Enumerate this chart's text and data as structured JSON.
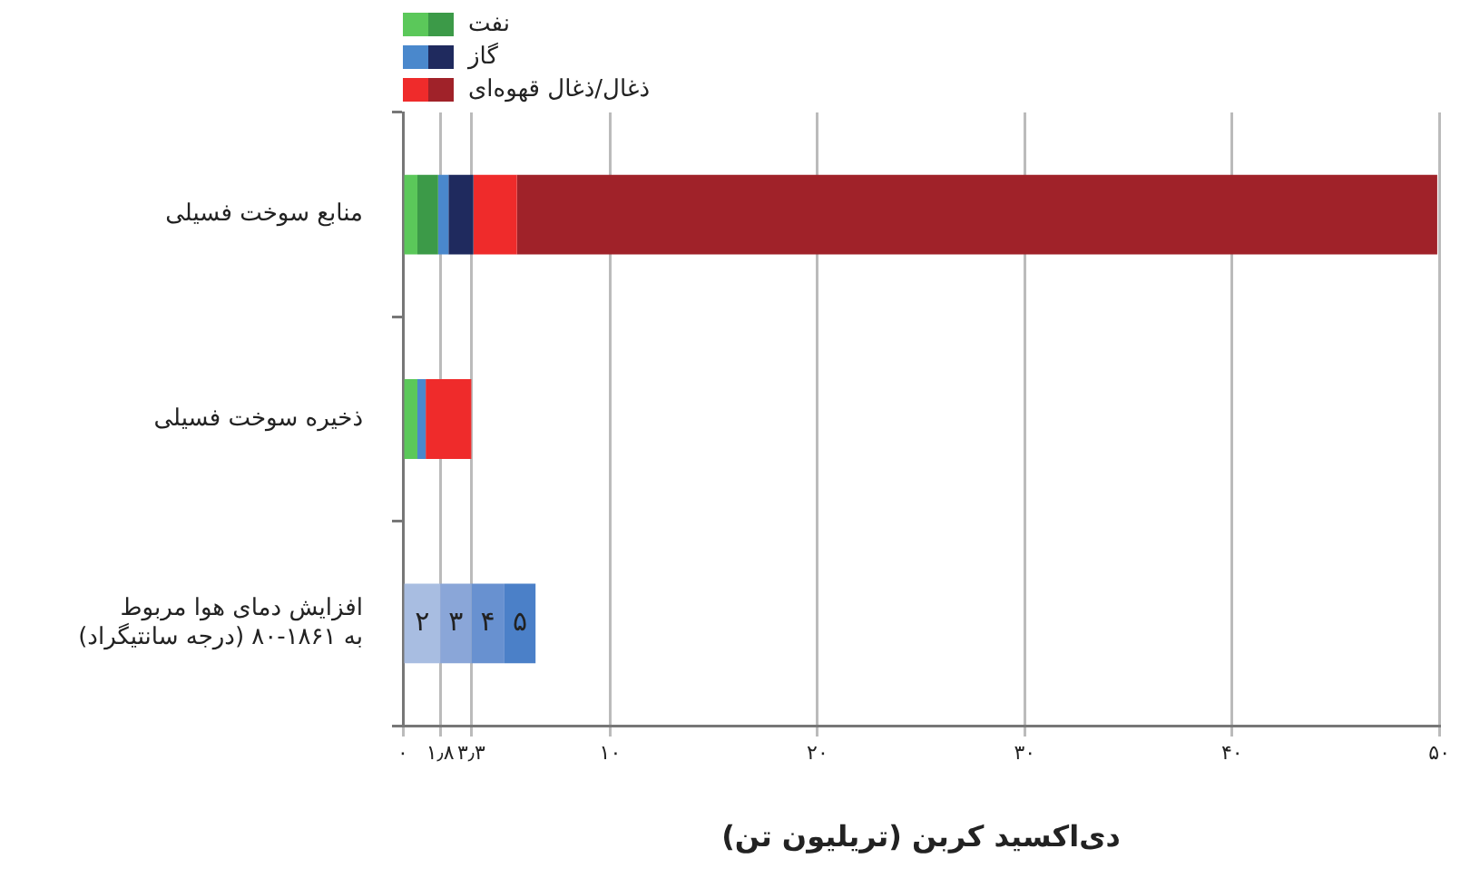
{
  "chart_data": {
    "type": "bar",
    "orientation": "horizontal",
    "stacked": true,
    "categories": [
      "منابع سوخت فسیلی",
      "ذخیره سوخت فسیلی",
      "افزایش دمای هوا مربوط به ۱۸۶۱-۸۰ (درجه سانتیگراد)"
    ],
    "series": [
      {
        "name": "نفت",
        "color": "#5bc85a",
        "values": [
          0.7,
          0.7,
          null
        ]
      },
      {
        "color": "#3c9a48",
        "values": [
          1.0,
          null,
          null
        ]
      },
      {
        "name": "گاز",
        "color": "#4a88cc",
        "values": [
          0.5,
          0.4,
          null
        ]
      },
      {
        "color": "#1f2a5e",
        "values": [
          1.2,
          null,
          null
        ]
      },
      {
        "name": "ذغال/ذغال قهوه‌ای",
        "color": "#ef2b2b",
        "values": [
          2.1,
          2.2,
          null
        ]
      },
      {
        "color": "#a02229",
        "values": [
          44.4,
          null,
          null
        ]
      },
      {
        "color": "#a8bde1",
        "values": [
          null,
          null,
          1.8
        ]
      },
      {
        "color": "#8aa6d8",
        "values": [
          null,
          null,
          1.5
        ]
      },
      {
        "color": "#6891d0",
        "values": [
          null,
          null,
          1.6
        ]
      },
      {
        "color": "#4b80c8",
        "values": [
          null,
          null,
          1.5
        ]
      }
    ],
    "annotations": [
      "۲",
      "۳",
      "۴",
      "۵"
    ],
    "xlim": [
      0,
      50
    ],
    "xticks": [
      {
        "value": 0,
        "label": "۰"
      },
      {
        "value": 1.8,
        "label": "۱٫۸"
      },
      {
        "value": 3.3,
        "label": "۳٫۳"
      },
      {
        "value": 10,
        "label": "۱۰"
      },
      {
        "value": 20,
        "label": "۲۰"
      },
      {
        "value": 30,
        "label": "۳۰"
      },
      {
        "value": 40,
        "label": "۴۰"
      },
      {
        "value": 50,
        "label": "۵۰"
      }
    ],
    "xlabel": "دی‌اکسید کربن (تریلیون تن)",
    "grid": "x",
    "legend": "top left"
  }
}
